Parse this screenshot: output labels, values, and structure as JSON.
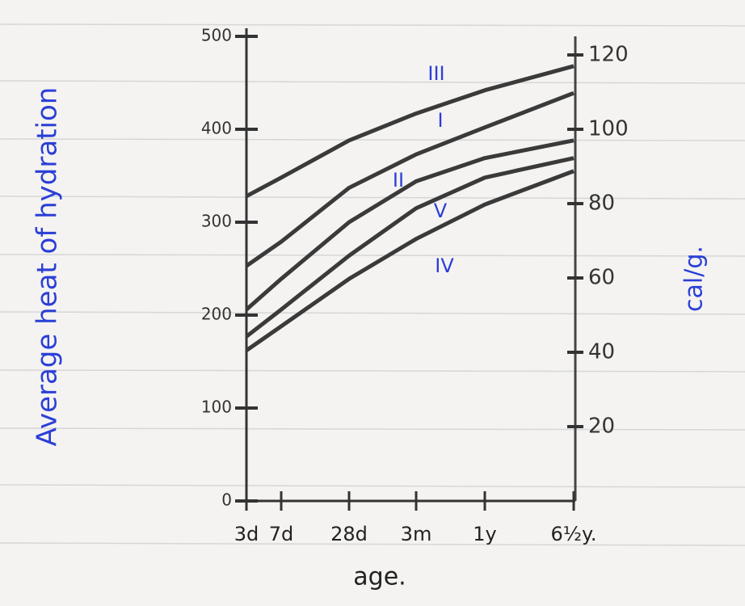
{
  "chart_data": {
    "type": "line",
    "y_label": "Average heat of hydration",
    "y2_label": "cal/g.",
    "x_label": "age.",
    "categories": [
      "3d",
      "7d",
      "28d",
      "3m",
      "1y",
      "6½y."
    ],
    "series": [
      {
        "name": "III",
        "color": "#3a3a3a",
        "values": [
          328,
          348,
          388,
          417,
          442,
          468
        ]
      },
      {
        "name": "I",
        "color": "#3a3a3a",
        "values": [
          253,
          279,
          337,
          373,
          402,
          439
        ]
      },
      {
        "name": "II",
        "color": "#3a3a3a",
        "values": [
          206,
          239,
          300,
          344,
          369,
          388
        ]
      },
      {
        "name": "V",
        "color": "#3a3a3a",
        "values": [
          177,
          206,
          264,
          315,
          348,
          369
        ]
      },
      {
        "name": "IV",
        "color": "#3a3a3a",
        "values": [
          162,
          188,
          239,
          282,
          319,
          355
        ]
      }
    ],
    "ylim": [
      0,
      500
    ],
    "yticks": [
      0,
      100,
      200,
      300,
      400,
      500
    ],
    "y2lim": [
      0,
      125
    ],
    "y2ticks": [
      20,
      40,
      60,
      80,
      100,
      120
    ],
    "label_color": "#2b3fd6"
  }
}
